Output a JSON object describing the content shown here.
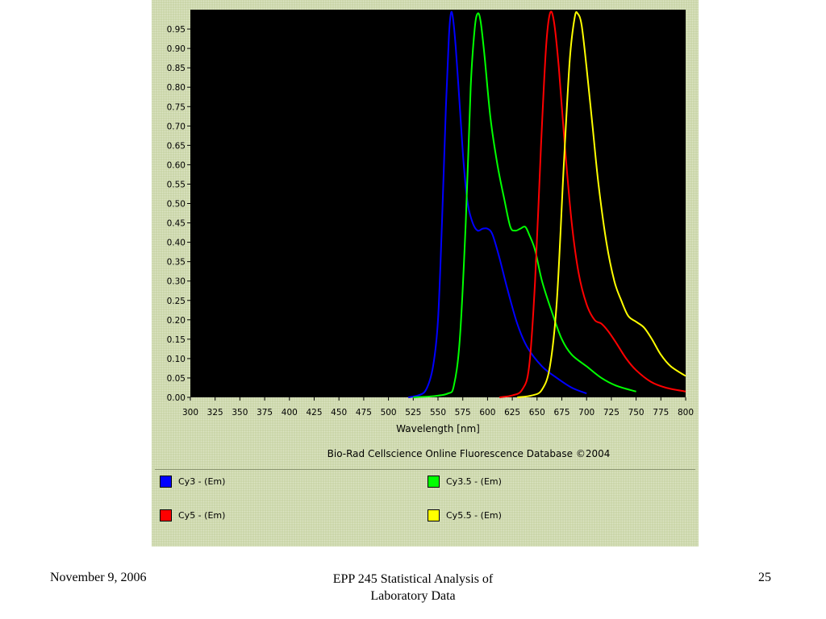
{
  "chart_data": {
    "type": "line",
    "xlabel": "Wavelength [nm]",
    "ylabel": "",
    "xlim": [
      300,
      800
    ],
    "ylim": [
      0,
      1.0
    ],
    "xticks": [
      300,
      325,
      350,
      375,
      400,
      425,
      450,
      475,
      500,
      525,
      550,
      575,
      600,
      625,
      650,
      675,
      700,
      725,
      750,
      775,
      800
    ],
    "yticks": [
      "0.00",
      "0.05",
      "0.10",
      "0.15",
      "0.20",
      "0.25",
      "0.30",
      "0.35",
      "0.40",
      "0.45",
      "0.50",
      "0.55",
      "0.60",
      "0.65",
      "0.70",
      "0.75",
      "0.80",
      "0.85",
      "0.90",
      "0.95"
    ],
    "source": "Bio-Rad Cellscience Online Fluorescence Database ©2004",
    "series": [
      {
        "name": "Cy3 - (Em)",
        "color": "#0000ff",
        "points": [
          [
            520,
            0
          ],
          [
            530,
            0.005
          ],
          [
            538,
            0.02
          ],
          [
            545,
            0.08
          ],
          [
            550,
            0.2
          ],
          [
            554,
            0.45
          ],
          [
            558,
            0.75
          ],
          [
            561,
            0.93
          ],
          [
            563,
            0.99
          ],
          [
            565,
            0.98
          ],
          [
            568,
            0.9
          ],
          [
            572,
            0.75
          ],
          [
            576,
            0.6
          ],
          [
            580,
            0.5
          ],
          [
            585,
            0.45
          ],
          [
            590,
            0.43
          ],
          [
            595,
            0.435
          ],
          [
            600,
            0.435
          ],
          [
            605,
            0.42
          ],
          [
            612,
            0.36
          ],
          [
            620,
            0.28
          ],
          [
            630,
            0.19
          ],
          [
            640,
            0.13
          ],
          [
            655,
            0.08
          ],
          [
            670,
            0.05
          ],
          [
            685,
            0.025
          ],
          [
            700,
            0.01
          ]
        ]
      },
      {
        "name": "Cy3.5 - (Em)",
        "color": "#00ff00",
        "points": [
          [
            525,
            0
          ],
          [
            545,
            0.003
          ],
          [
            560,
            0.01
          ],
          [
            566,
            0.03
          ],
          [
            572,
            0.15
          ],
          [
            578,
            0.45
          ],
          [
            583,
            0.8
          ],
          [
            587,
            0.95
          ],
          [
            590,
            0.99
          ],
          [
            593,
            0.97
          ],
          [
            597,
            0.88
          ],
          [
            603,
            0.72
          ],
          [
            610,
            0.6
          ],
          [
            617,
            0.51
          ],
          [
            623,
            0.44
          ],
          [
            628,
            0.43
          ],
          [
            633,
            0.435
          ],
          [
            638,
            0.44
          ],
          [
            642,
            0.42
          ],
          [
            648,
            0.38
          ],
          [
            655,
            0.3
          ],
          [
            665,
            0.22
          ],
          [
            675,
            0.15
          ],
          [
            685,
            0.11
          ],
          [
            700,
            0.08
          ],
          [
            715,
            0.05
          ],
          [
            730,
            0.03
          ],
          [
            750,
            0.015
          ]
        ]
      },
      {
        "name": "Cy5 - (Em)",
        "color": "#ff0000",
        "points": [
          [
            612,
            0
          ],
          [
            625,
            0.005
          ],
          [
            635,
            0.02
          ],
          [
            642,
            0.08
          ],
          [
            648,
            0.3
          ],
          [
            654,
            0.65
          ],
          [
            659,
            0.9
          ],
          [
            663,
            0.99
          ],
          [
            667,
            0.97
          ],
          [
            672,
            0.85
          ],
          [
            678,
            0.65
          ],
          [
            685,
            0.45
          ],
          [
            692,
            0.32
          ],
          [
            700,
            0.24
          ],
          [
            708,
            0.2
          ],
          [
            715,
            0.19
          ],
          [
            722,
            0.17
          ],
          [
            730,
            0.14
          ],
          [
            740,
            0.1
          ],
          [
            750,
            0.07
          ],
          [
            765,
            0.04
          ],
          [
            780,
            0.025
          ],
          [
            800,
            0.015
          ]
        ]
      },
      {
        "name": "Cy5.5 - (Em)",
        "color": "#ffff00",
        "points": [
          [
            630,
            0
          ],
          [
            645,
            0.005
          ],
          [
            655,
            0.02
          ],
          [
            663,
            0.08
          ],
          [
            670,
            0.25
          ],
          [
            677,
            0.6
          ],
          [
            683,
            0.87
          ],
          [
            688,
            0.98
          ],
          [
            691,
            0.99
          ],
          [
            695,
            0.96
          ],
          [
            700,
            0.85
          ],
          [
            706,
            0.7
          ],
          [
            712,
            0.55
          ],
          [
            720,
            0.4
          ],
          [
            728,
            0.3
          ],
          [
            735,
            0.25
          ],
          [
            742,
            0.21
          ],
          [
            750,
            0.195
          ],
          [
            758,
            0.18
          ],
          [
            766,
            0.15
          ],
          [
            775,
            0.11
          ],
          [
            785,
            0.08
          ],
          [
            800,
            0.055
          ]
        ]
      }
    ]
  },
  "legend": {
    "items": [
      {
        "label": "Cy3 - (Em)",
        "color": "#0000ff"
      },
      {
        "label": "Cy3.5 - (Em)",
        "color": "#00ff00"
      },
      {
        "label": "Cy5 - (Em)",
        "color": "#ff0000"
      },
      {
        "label": "Cy5.5 - (Em)",
        "color": "#ffff00"
      }
    ]
  },
  "footer": {
    "date": "November 9, 2006",
    "title_line1": "EPP 245 Statistical Analysis of",
    "title_line2": "Laboratory Data",
    "page": "25"
  }
}
